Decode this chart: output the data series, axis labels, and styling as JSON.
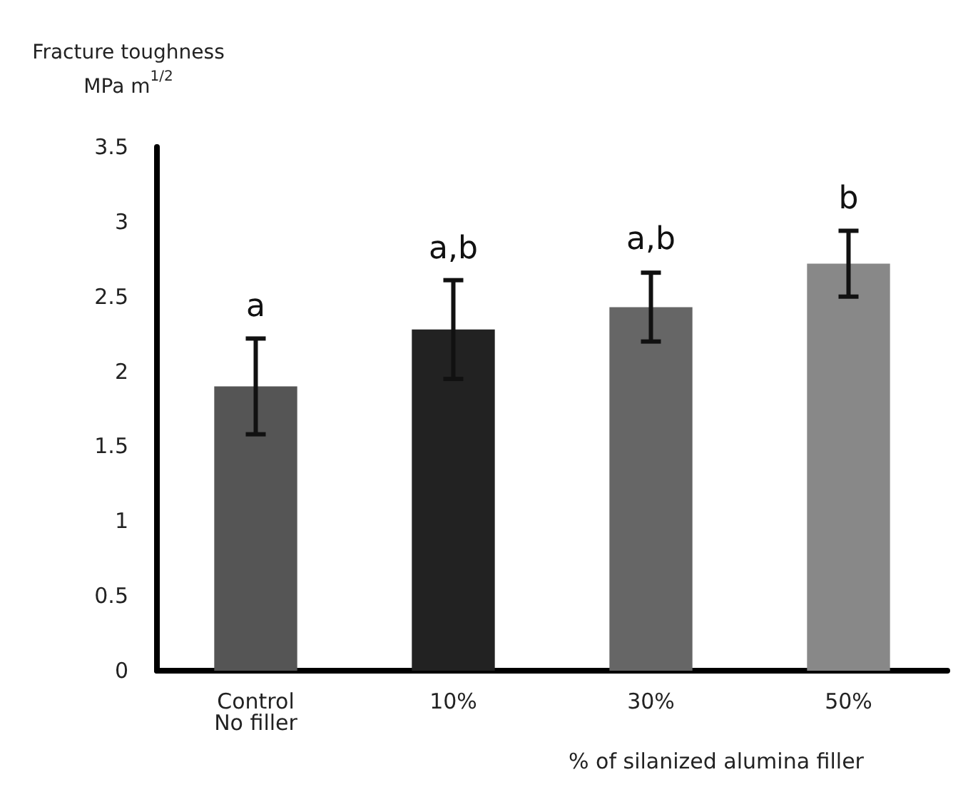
{
  "chart_data": {
    "type": "bar",
    "ylabel": "Fracture toughness\nMPa m$^{1/2}$",
    "xlabel": "% of silanized alumina filler",
    "categories": [
      "Control\nNo filler",
      "10%",
      "30%",
      "50%"
    ],
    "values": [
      1.9,
      2.28,
      2.43,
      2.72
    ],
    "colors": [
      "#555555",
      "#222222",
      "#666666",
      "#888888"
    ],
    "errors": [
      0.32,
      0.33,
      0.23,
      0.22
    ],
    "ylim": [
      0,
      3.5
    ],
    "yticks": [
      0,
      0.5,
      1,
      1.5,
      2,
      2.5,
      3,
      3.5
    ],
    "grid": false,
    "annotations": [
      {
        "text": "a",
        "x": "Control\nNo filler",
        "y": 2.23
      },
      {
        "text": "a,b",
        "x": "10%",
        "y": 2.62
      },
      {
        "text": "a,b",
        "x": "30%",
        "y": 2.68
      },
      {
        "text": "b",
        "x": "50%",
        "y": 2.95
      }
    ]
  }
}
